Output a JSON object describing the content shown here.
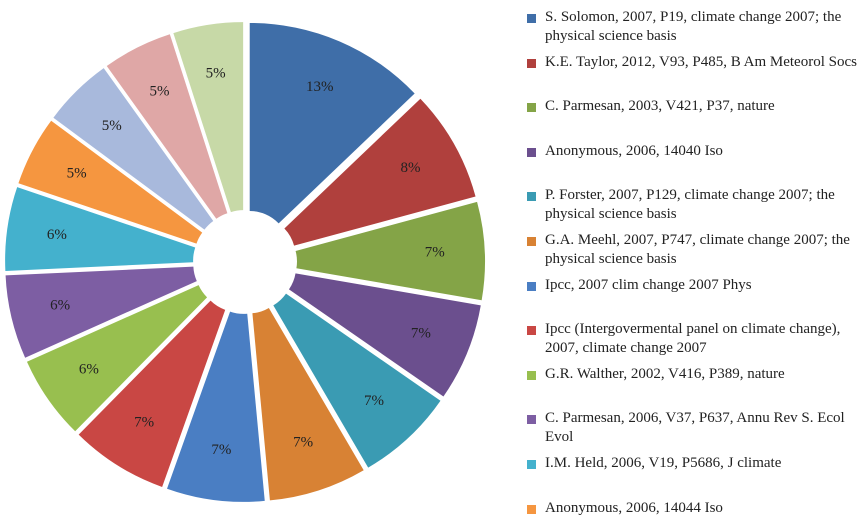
{
  "chart_data": {
    "type": "pie",
    "categories": [
      "S. Solomon, 2007, P19, climate change 2007; the physical science basis",
      "K.E. Taylor, 2012, V93, P485, B Am Meteorol Socs",
      "C. Parmesan, 2003, V421, P37, nature",
      "Anonymous, 2006, 14040 Iso",
      "P. Forster, 2007, P129, climate change 2007; the physical science basis",
      "G.A. Meehl, 2007, P747, climate change 2007; the physical science basis",
      "Ipcc, 2007 clim change 2007 Phys",
      "Ipcc (Intergovermental panel on climate change), 2007, climate change 2007",
      "G.R. Walther, 2002, V416, P389, nature",
      "C. Parmesan, 2006, V37, P637, Annu Rev S. Ecol Evol",
      "I.M. Held, 2006, V19, P5686, J climate",
      "Anonymous, 2006, 14044 Iso",
      null,
      null,
      null
    ],
    "values": [
      13,
      8,
      7,
      7,
      7,
      7,
      7,
      7,
      6,
      6,
      6,
      5,
      5,
      5,
      5
    ],
    "value_labels": [
      "13%",
      "8%",
      "7%",
      "7%",
      "7%",
      "7%",
      "7%",
      "7%",
      "6%",
      "6%",
      "6%",
      "5%",
      "5%",
      "5%",
      "5%"
    ],
    "colors": [
      "#3f6ea8",
      "#b0403d",
      "#84a447",
      "#6b4f8e",
      "#3a9bb3",
      "#d88234",
      "#4a7ec3",
      "#c94744",
      "#98bf4f",
      "#7d5ea3",
      "#44b1cd",
      "#f59640",
      "#a8b9dc",
      "#dfa7a6",
      "#c7d9a7"
    ]
  }
}
